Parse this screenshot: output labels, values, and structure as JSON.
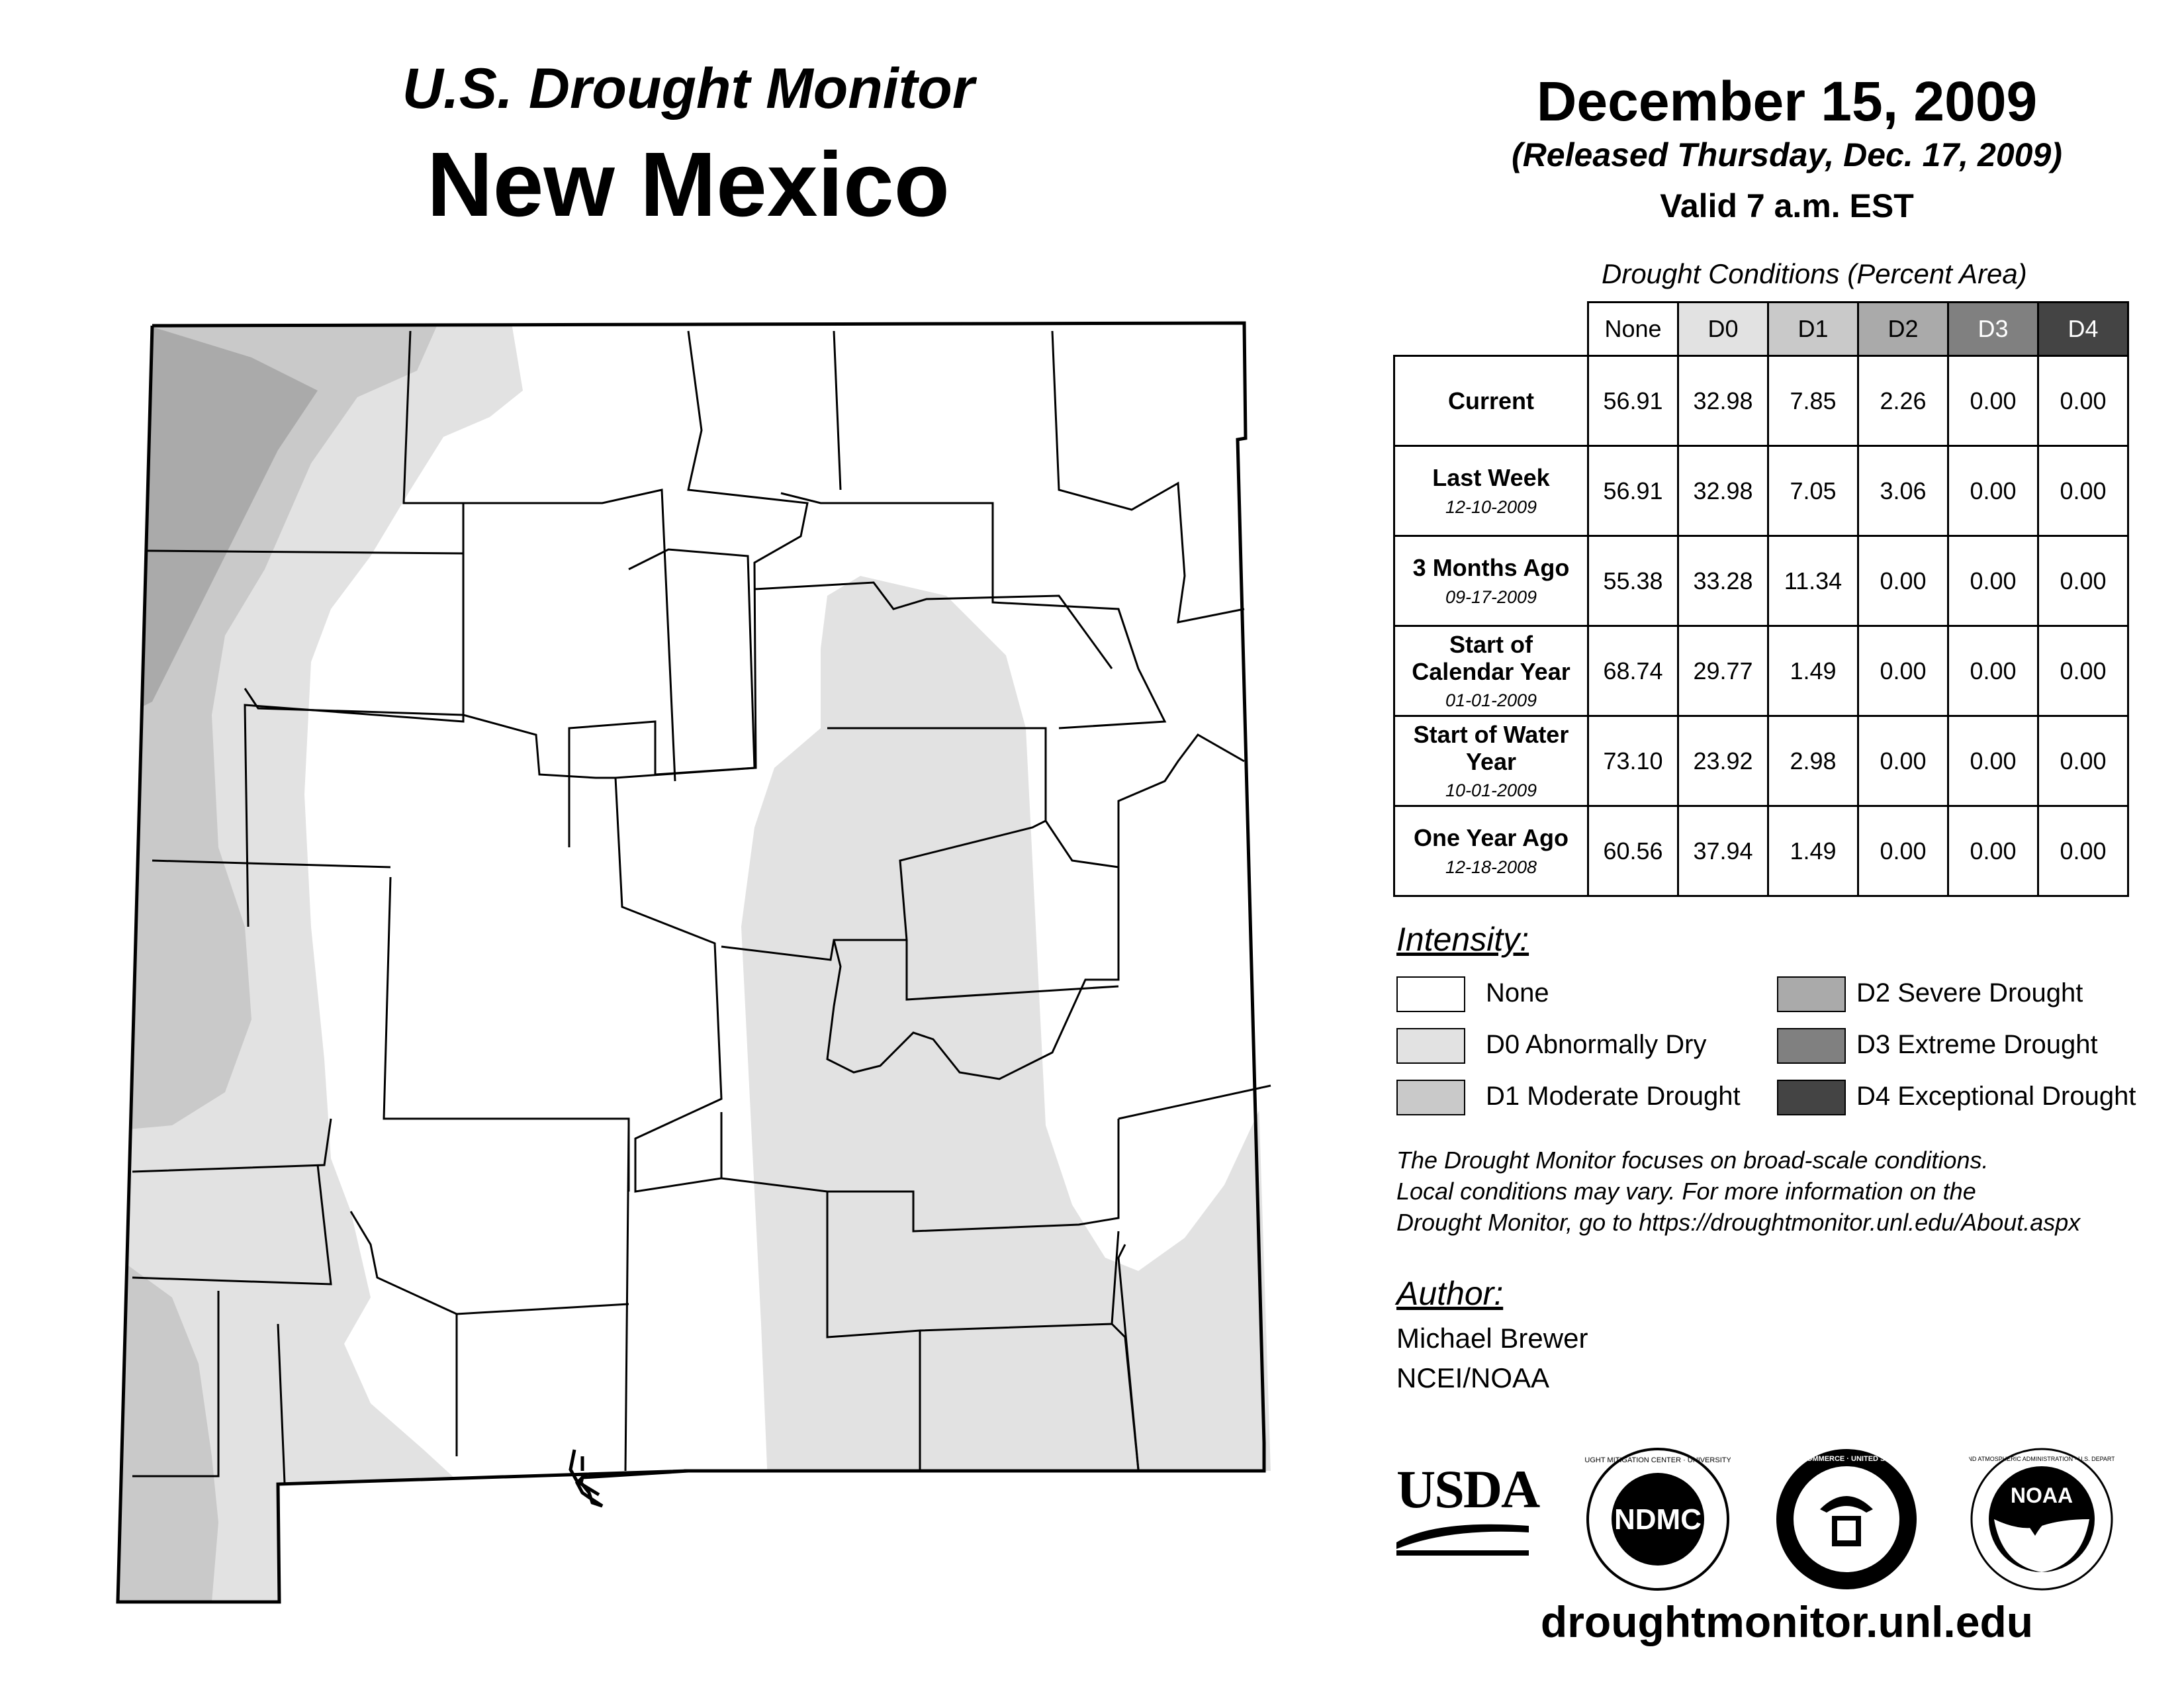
{
  "header": {
    "supertitle": "U.S. Drought Monitor",
    "state": "New Mexico",
    "date": "December 15, 2009",
    "released": "(Released Thursday, Dec. 17, 2009)",
    "valid": "Valid 7 a.m. EST"
  },
  "table": {
    "caption": "Drought Conditions (Percent Area)",
    "columns": [
      "None",
      "D0",
      "D1",
      "D2",
      "D3",
      "D4"
    ],
    "rows": [
      {
        "label": "Current",
        "date": "",
        "values": [
          "56.91",
          "32.98",
          "7.85",
          "2.26",
          "0.00",
          "0.00"
        ]
      },
      {
        "label": "Last Week",
        "date": "12-10-2009",
        "values": [
          "56.91",
          "32.98",
          "7.05",
          "3.06",
          "0.00",
          "0.00"
        ]
      },
      {
        "label": "3 Months Ago",
        "date": "09-17-2009",
        "values": [
          "55.38",
          "33.28",
          "11.34",
          "0.00",
          "0.00",
          "0.00"
        ]
      },
      {
        "label": "Start of Calendar Year",
        "date": "01-01-2009",
        "values": [
          "68.74",
          "29.77",
          "1.49",
          "0.00",
          "0.00",
          "0.00"
        ]
      },
      {
        "label": "Start of Water Year",
        "date": "10-01-2009",
        "values": [
          "73.10",
          "23.92",
          "2.98",
          "0.00",
          "0.00",
          "0.00"
        ]
      },
      {
        "label": "One Year Ago",
        "date": "12-18-2008",
        "values": [
          "60.56",
          "37.94",
          "1.49",
          "0.00",
          "0.00",
          "0.00"
        ]
      }
    ]
  },
  "legend": {
    "title": "Intensity:",
    "items": [
      {
        "label": "None",
        "color": "#ffffff"
      },
      {
        "label": "D0 Abnormally Dry",
        "color": "#e2e2e2"
      },
      {
        "label": "D1 Moderate Drought",
        "color": "#c9c9c9"
      },
      {
        "label": "D2 Severe Drought",
        "color": "#aaaaaa"
      },
      {
        "label": "D3 Extreme Drought",
        "color": "#808080"
      },
      {
        "label": "D4 Exceptional Drought",
        "color": "#444444"
      }
    ]
  },
  "note": {
    "line1": "The Drought Monitor focuses on broad-scale conditions.",
    "line2": "Local conditions may vary. For more information on the",
    "line3": "Drought Monitor, go to https://droughtmonitor.unl.edu/About.aspx"
  },
  "author": {
    "title": "Author:",
    "name": "Michael Brewer",
    "org": "NCEI/NOAA"
  },
  "logos": {
    "usda": "USDA",
    "ndmc": "NDMC",
    "ndmc_ring": "NATIONAL DROUGHT MITIGATION CENTER · UNIVERSITY OF NEBRASKA",
    "doc_ring": "DEPARTMENT OF COMMERCE · UNITED STATES OF AMERICA",
    "noaa": "NOAA",
    "noaa_ring": "NATIONAL OCEANIC AND ATMOSPHERIC ADMINISTRATION · U.S. DEPARTMENT OF COMMERCE"
  },
  "footer": {
    "url": "droughtmonitor.unl.edu"
  }
}
